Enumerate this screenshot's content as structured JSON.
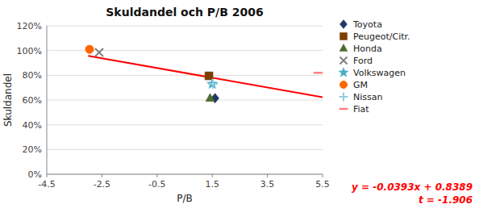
{
  "chart_data": {
    "type": "scatter",
    "title": "Skuldandel och P/B 2006",
    "x_label": "P/B",
    "y_label": "Skuldandel",
    "xlim": [
      -4.5,
      5.5
    ],
    "ylim": [
      0.0,
      1.2
    ],
    "xticks": [
      -4.5,
      -2.5,
      -0.5,
      1.5,
      3.5,
      5.5
    ],
    "yticks": [
      {
        "value": 0.0,
        "label": "0%"
      },
      {
        "value": 0.2,
        "label": "20%"
      },
      {
        "value": 0.4,
        "label": "40%"
      },
      {
        "value": 0.6,
        "label": "60%"
      },
      {
        "value": 0.8,
        "label": "80%"
      },
      {
        "value": 1.0,
        "label": "100%"
      },
      {
        "value": 1.2,
        "label": "120%"
      }
    ],
    "grid": "y",
    "series": [
      {
        "name": "Toyota",
        "color": "#1F3864",
        "marker": "diamond",
        "x": [
          1.6
        ],
        "values": [
          0.615
        ]
      },
      {
        "name": "Peugeot/Citr.",
        "color": "#7B3F00",
        "marker": "square",
        "x": [
          1.38
        ],
        "values": [
          0.795
        ]
      },
      {
        "name": "Honda",
        "color": "#4E6B2E",
        "marker": "triangle",
        "x": [
          1.42
        ],
        "values": [
          0.615
        ]
      },
      {
        "name": "Ford",
        "color": "#808080",
        "marker": "x",
        "x": [
          -2.6
        ],
        "values": [
          0.985
        ]
      },
      {
        "name": "Volkswagen",
        "color": "#4BACC6",
        "marker": "star",
        "x": [
          1.5
        ],
        "values": [
          0.73
        ]
      },
      {
        "name": "GM",
        "color": "#FF6600",
        "marker": "circle",
        "x": [
          -2.95
        ],
        "values": [
          1.01
        ]
      },
      {
        "name": "Nissan",
        "color": "#92CDDC",
        "marker": "plus",
        "x": [
          1.52
        ],
        "values": [
          0.73
        ]
      },
      {
        "name": "Fiat",
        "color": "#FF8080",
        "marker": "hline",
        "x": [
          5.35
        ],
        "values": [
          0.82
        ]
      }
    ],
    "regression": {
      "type": "line",
      "color": "#FF0000",
      "x": [
        -3.0,
        5.5
      ],
      "values": [
        0.9568,
        0.62275
      ]
    },
    "annotations": [
      {
        "text": "y = -0.0393x + 0.8389",
        "color": "#FF0000"
      },
      {
        "text": "t = -1.906",
        "color": "#FF0000"
      }
    ]
  }
}
